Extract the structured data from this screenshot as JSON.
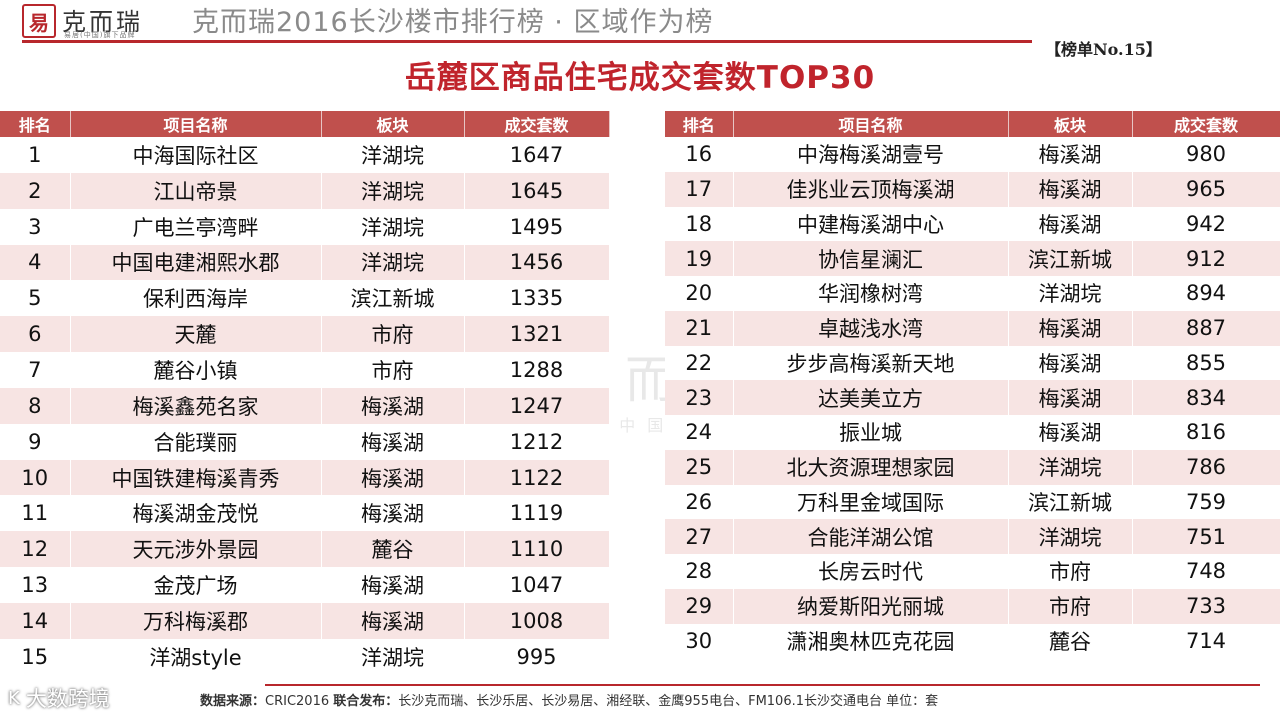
{
  "header": {
    "logo_glyph": "易",
    "logo_text": "克而瑞",
    "logo_sub": "易居(中国)旗下品牌",
    "title": "克而瑞2016长沙楼市排行榜 · 区域作为榜",
    "list_tag": "【榜单No.15】"
  },
  "main_title": "岳麓区商品住宅成交套数TOP30",
  "watermark": {
    "glyph": "易",
    "text": "克而瑞",
    "sub": "易居(中国)旗下品牌"
  },
  "table_headers": [
    "排名",
    "项目名称",
    "板块",
    "成交套数"
  ],
  "rows_left": [
    [
      "1",
      "中海国际社区",
      "洋湖垸",
      "1647"
    ],
    [
      "2",
      "江山帝景",
      "洋湖垸",
      "1645"
    ],
    [
      "3",
      "广电兰亭湾畔",
      "洋湖垸",
      "1495"
    ],
    [
      "4",
      "中国电建湘熙水郡",
      "洋湖垸",
      "1456"
    ],
    [
      "5",
      "保利西海岸",
      "滨江新城",
      "1335"
    ],
    [
      "6",
      "天麓",
      "市府",
      "1321"
    ],
    [
      "7",
      "麓谷小镇",
      "市府",
      "1288"
    ],
    [
      "8",
      "梅溪鑫苑名家",
      "梅溪湖",
      "1247"
    ],
    [
      "9",
      "合能璞丽",
      "梅溪湖",
      "1212"
    ],
    [
      "10",
      "中国铁建梅溪青秀",
      "梅溪湖",
      "1122"
    ],
    [
      "11",
      "梅溪湖金茂悦",
      "梅溪湖",
      "1119"
    ],
    [
      "12",
      "天元涉外景园",
      "麓谷",
      "1110"
    ],
    [
      "13",
      "金茂广场",
      "梅溪湖",
      "1047"
    ],
    [
      "14",
      "万科梅溪郡",
      "梅溪湖",
      "1008"
    ],
    [
      "15",
      "洋湖style",
      "洋湖垸",
      "995"
    ]
  ],
  "rows_right": [
    [
      "16",
      "中海梅溪湖壹号",
      "梅溪湖",
      "980"
    ],
    [
      "17",
      "佳兆业云顶梅溪湖",
      "梅溪湖",
      "965"
    ],
    [
      "18",
      "中建梅溪湖中心",
      "梅溪湖",
      "942"
    ],
    [
      "19",
      "协信星澜汇",
      "滨江新城",
      "912"
    ],
    [
      "20",
      "华润橡树湾",
      "洋湖垸",
      "894"
    ],
    [
      "21",
      "卓越浅水湾",
      "梅溪湖",
      "887"
    ],
    [
      "22",
      "步步高梅溪新天地",
      "梅溪湖",
      "855"
    ],
    [
      "23",
      "达美美立方",
      "梅溪湖",
      "834"
    ],
    [
      "24",
      "振业城",
      "梅溪湖",
      "816"
    ],
    [
      "25",
      "北大资源理想家园",
      "洋湖垸",
      "786"
    ],
    [
      "26",
      "万科里金域国际",
      "滨江新城",
      "759"
    ],
    [
      "27",
      "合能洋湖公馆",
      "洋湖垸",
      "751"
    ],
    [
      "28",
      "长房云时代",
      "市府",
      "748"
    ],
    [
      "29",
      "纳爱斯阳光丽城",
      "市府",
      "733"
    ],
    [
      "30",
      "潇湘奥林匹克花园",
      "麓谷",
      "714"
    ]
  ],
  "footer": {
    "source_label": "数据来源：",
    "source": "CRIC2016",
    "publish_label": "联合发布：",
    "publishers": "长沙克而瑞、长沙乐居、长沙易居、湘经联、金鹰955电台、FM106.1长沙交通电台",
    "unit_label": "单位：",
    "unit": "套"
  },
  "brand": {
    "icon": "K",
    "text": "大数跨境"
  },
  "colors": {
    "accent": "#c0242c",
    "header_row": "#c0504d",
    "stripe": "#f7e4e3"
  }
}
